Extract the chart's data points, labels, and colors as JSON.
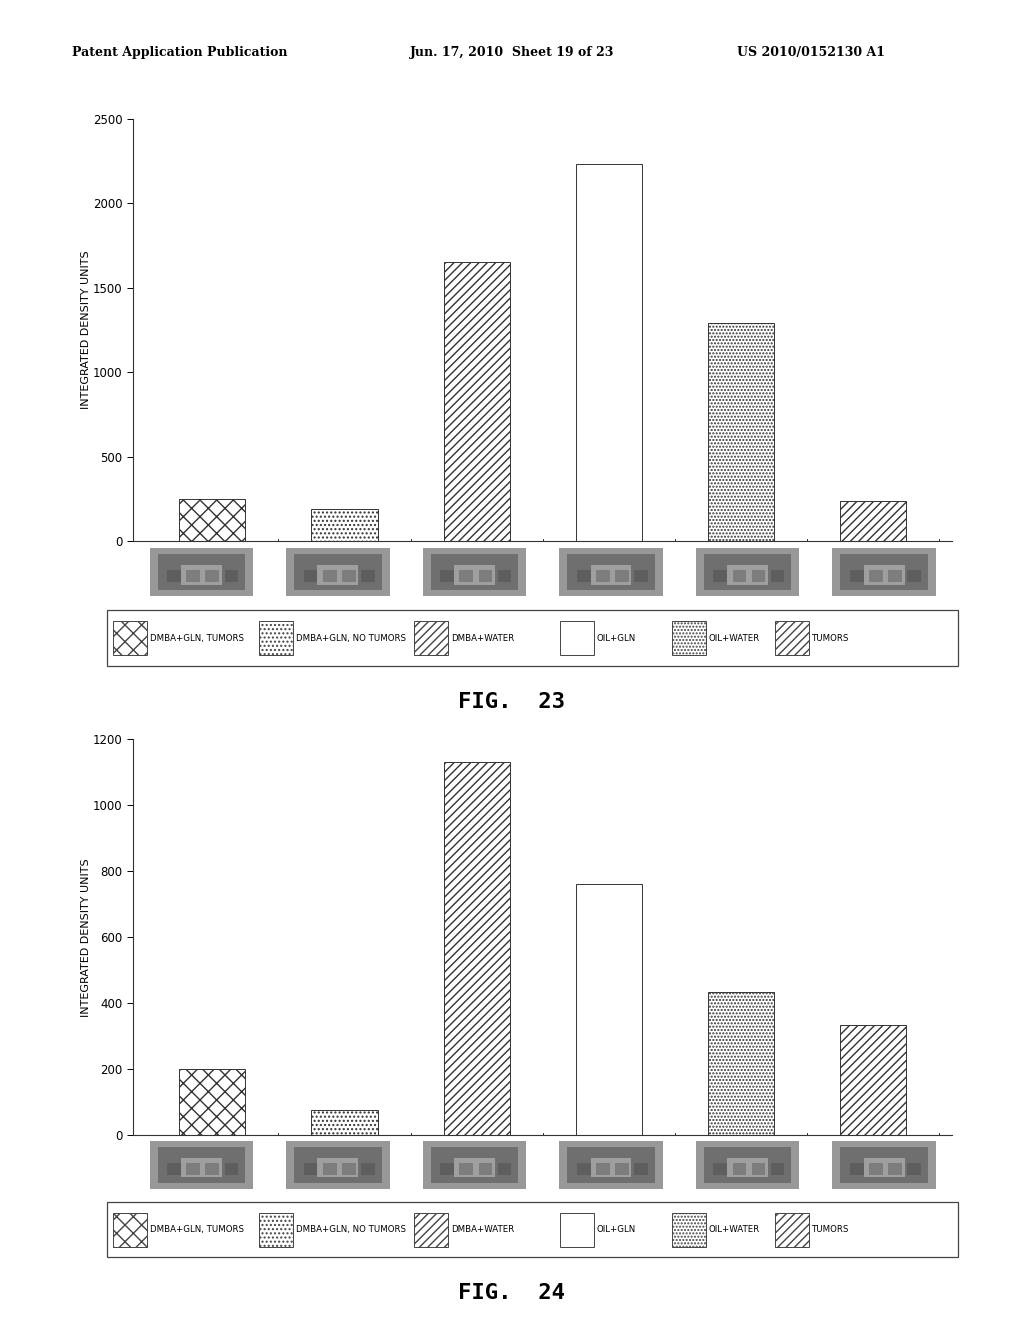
{
  "fig23": {
    "ylabel": "INTEGRATED DENSITY UNITS",
    "ylim": [
      0,
      2500
    ],
    "yticks": [
      0,
      500,
      1000,
      1500,
      2000,
      2500
    ],
    "values": [
      250,
      190,
      1650,
      2230,
      1290,
      235
    ],
    "bar_patterns": [
      "xx",
      "....",
      "////",
      "",
      ".....",
      "////"
    ],
    "fig_label": "FIG.  23"
  },
  "fig24": {
    "ylabel": "INTEGRATED DENSITY UNITS",
    "ylim": [
      0,
      1200
    ],
    "yticks": [
      0,
      200,
      400,
      600,
      800,
      1000,
      1200
    ],
    "values": [
      200,
      75,
      1130,
      760,
      435,
      335
    ],
    "bar_patterns": [
      "xx",
      "....",
      "////",
      "",
      ".....",
      "////"
    ],
    "fig_label": "FIG.  24"
  },
  "legend_labels": [
    "DMBA+GLN, TUMORS",
    "DMBA+GLN, NO TUMORS",
    "DMBA+WATER",
    "OIL+GLN",
    "OIL+WATER",
    "TUMORS"
  ],
  "legend_patterns": [
    "xx",
    "....",
    "////",
    "",
    ".....",
    "////"
  ],
  "background_color": "#ffffff",
  "text_color": "#000000"
}
